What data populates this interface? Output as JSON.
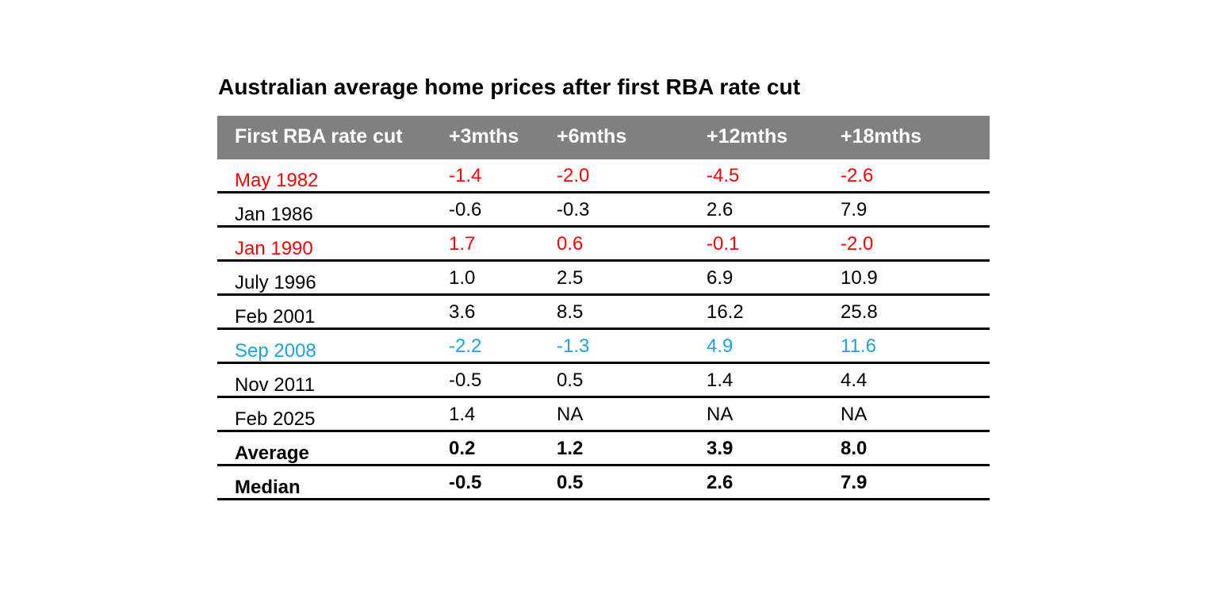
{
  "chart_data": {
    "type": "table",
    "title": "Australian average home prices after first RBA rate cut",
    "columns": [
      "First RBA rate cut",
      "+3mths",
      "+6mths",
      "+12mths",
      "+18mths"
    ],
    "rows": [
      {
        "label": "May 1982",
        "values": [
          "-1.4",
          "-2.0",
          "-4.5",
          "-2.6"
        ],
        "color": "#ff0000",
        "bold": false
      },
      {
        "label": "Jan 1986",
        "values": [
          "-0.6",
          "-0.3",
          "2.6",
          "7.9"
        ],
        "color": "#000000",
        "bold": false
      },
      {
        "label": "Jan 1990",
        "values": [
          "1.7",
          "0.6",
          "-0.1",
          "-2.0"
        ],
        "color": "#ff0000",
        "bold": false
      },
      {
        "label": "July 1996",
        "values": [
          "1.0",
          "2.5",
          "6.9",
          "10.9"
        ],
        "color": "#000000",
        "bold": false
      },
      {
        "label": "Feb  2001",
        "values": [
          "3.6",
          "8.5",
          "16.2",
          "25.8"
        ],
        "color": "#000000",
        "bold": false
      },
      {
        "label": "Sep 2008",
        "values": [
          "-2.2",
          "-1.3",
          "4.9",
          "11.6"
        ],
        "color": "#1aa3e0",
        "bold": false
      },
      {
        "label": "Nov 2011",
        "values": [
          "-0.5",
          "0.5",
          "1.4",
          "4.4"
        ],
        "color": "#000000",
        "bold": false
      },
      {
        "label": "Feb 2025",
        "values": [
          "1.4",
          "NA",
          "NA",
          "NA"
        ],
        "color": "#000000",
        "bold": false
      },
      {
        "label": "Average",
        "values": [
          "0.2",
          "1.2",
          "3.9",
          "8.0"
        ],
        "color": "#000000",
        "bold": true
      },
      {
        "label": "Median",
        "values": [
          "-0.5",
          "0.5",
          "2.6",
          "7.9"
        ],
        "color": "#000000",
        "bold": true
      }
    ],
    "header_background": "#808080",
    "header_text_color": "#ffffff"
  }
}
